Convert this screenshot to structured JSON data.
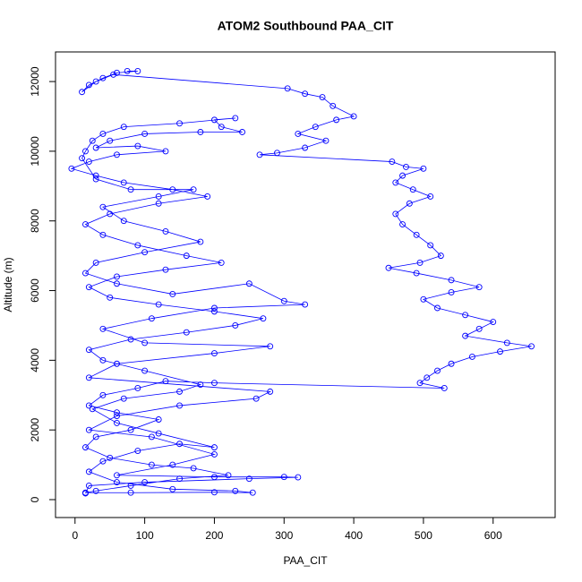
{
  "chart_data": {
    "type": "line",
    "markers": "circle",
    "title": "ATOM2 Southbound PAA_CIT",
    "x_label": "PAA_CIT",
    "y_label": "Altitude (m)",
    "color": "#0000ff",
    "xlim": [
      -28,
      689
    ],
    "ylim": [
      -514,
      12850
    ],
    "xticks": [
      0,
      100,
      200,
      300,
      400,
      500,
      600
    ],
    "yticks": [
      0,
      2000,
      4000,
      6000,
      8000,
      10000,
      12000
    ],
    "x": [
      75,
      90,
      60,
      40,
      20,
      10,
      30,
      55,
      305,
      330,
      355,
      370,
      400,
      375,
      345,
      320,
      360,
      330,
      290,
      265,
      455,
      475,
      500,
      470,
      460,
      485,
      510,
      480,
      460,
      470,
      490,
      510,
      525,
      495,
      450,
      490,
      540,
      580,
      540,
      500,
      520,
      560,
      600,
      580,
      560,
      620,
      655,
      610,
      570,
      540,
      520,
      505,
      495,
      530,
      200,
      130,
      90,
      40,
      20,
      60,
      120,
      80,
      30,
      15,
      50,
      110,
      170,
      220,
      150,
      80,
      30,
      15,
      80,
      200,
      255,
      230,
      140,
      60,
      20,
      40,
      90,
      150,
      200,
      120,
      60,
      25,
      70,
      150,
      180,
      100,
      40,
      20,
      80,
      160,
      230,
      270,
      200,
      120,
      50,
      20,
      60,
      130,
      210,
      160,
      90,
      40,
      15,
      50,
      120,
      190,
      140,
      70,
      30,
      -5,
      20,
      60,
      130,
      90,
      30,
      50,
      100,
      180,
      240,
      210,
      200,
      230,
      150,
      70,
      40,
      25,
      15,
      10,
      30,
      80,
      170,
      120,
      40,
      70,
      130,
      180,
      100,
      30,
      15,
      60,
      140,
      250,
      300,
      330,
      200,
      110,
      40,
      100,
      280,
      200,
      60,
      20,
      280,
      260,
      150,
      60,
      20,
      110,
      200,
      140,
      60,
      200,
      300,
      320,
      250,
      100,
      20,
      15
    ],
    "values": [
      12300,
      12300,
      12250,
      12100,
      11900,
      11700,
      12000,
      12200,
      11800,
      11650,
      11550,
      11300,
      11000,
      10900,
      10700,
      10500,
      10300,
      10100,
      9950,
      9900,
      9700,
      9550,
      9500,
      9300,
      9100,
      8900,
      8700,
      8500,
      8200,
      7900,
      7600,
      7300,
      7000,
      6800,
      6650,
      6500,
      6300,
      6100,
      5950,
      5750,
      5500,
      5300,
      5100,
      4900,
      4700,
      4500,
      4400,
      4250,
      4100,
      3900,
      3700,
      3500,
      3350,
      3200,
      3350,
      3400,
      3200,
      3000,
      2700,
      2500,
      2300,
      2000,
      1800,
      1500,
      1200,
      1000,
      900,
      700,
      600,
      400,
      250,
      200,
      200,
      210,
      200,
      250,
      300,
      500,
      800,
      1100,
      1400,
      1600,
      1500,
      1900,
      2200,
      2600,
      2900,
      3100,
      3300,
      3700,
      4000,
      4300,
      4600,
      4800,
      5000,
      5200,
      5400,
      5600,
      5800,
      6100,
      6400,
      6600,
      6800,
      7000,
      7300,
      7600,
      7900,
      8200,
      8500,
      8700,
      8900,
      9100,
      9300,
      9500,
      9700,
      9900,
      10000,
      10150,
      10100,
      10300,
      10500,
      10550,
      10550,
      10700,
      10900,
      10950,
      10800,
      10700,
      10500,
      10300,
      10000,
      9800,
      9200,
      8900,
      8900,
      8700,
      8400,
      8000,
      7700,
      7400,
      7100,
      6800,
      6500,
      6200,
      5900,
      6200,
      5700,
      5600,
      5500,
      5200,
      4900,
      4500,
      4400,
      4200,
      3900,
      3500,
      3100,
      2900,
      2700,
      2400,
      2000,
      1800,
      1300,
      1000,
      700,
      650,
      650,
      640,
      600,
      500,
      400,
      180
    ]
  }
}
